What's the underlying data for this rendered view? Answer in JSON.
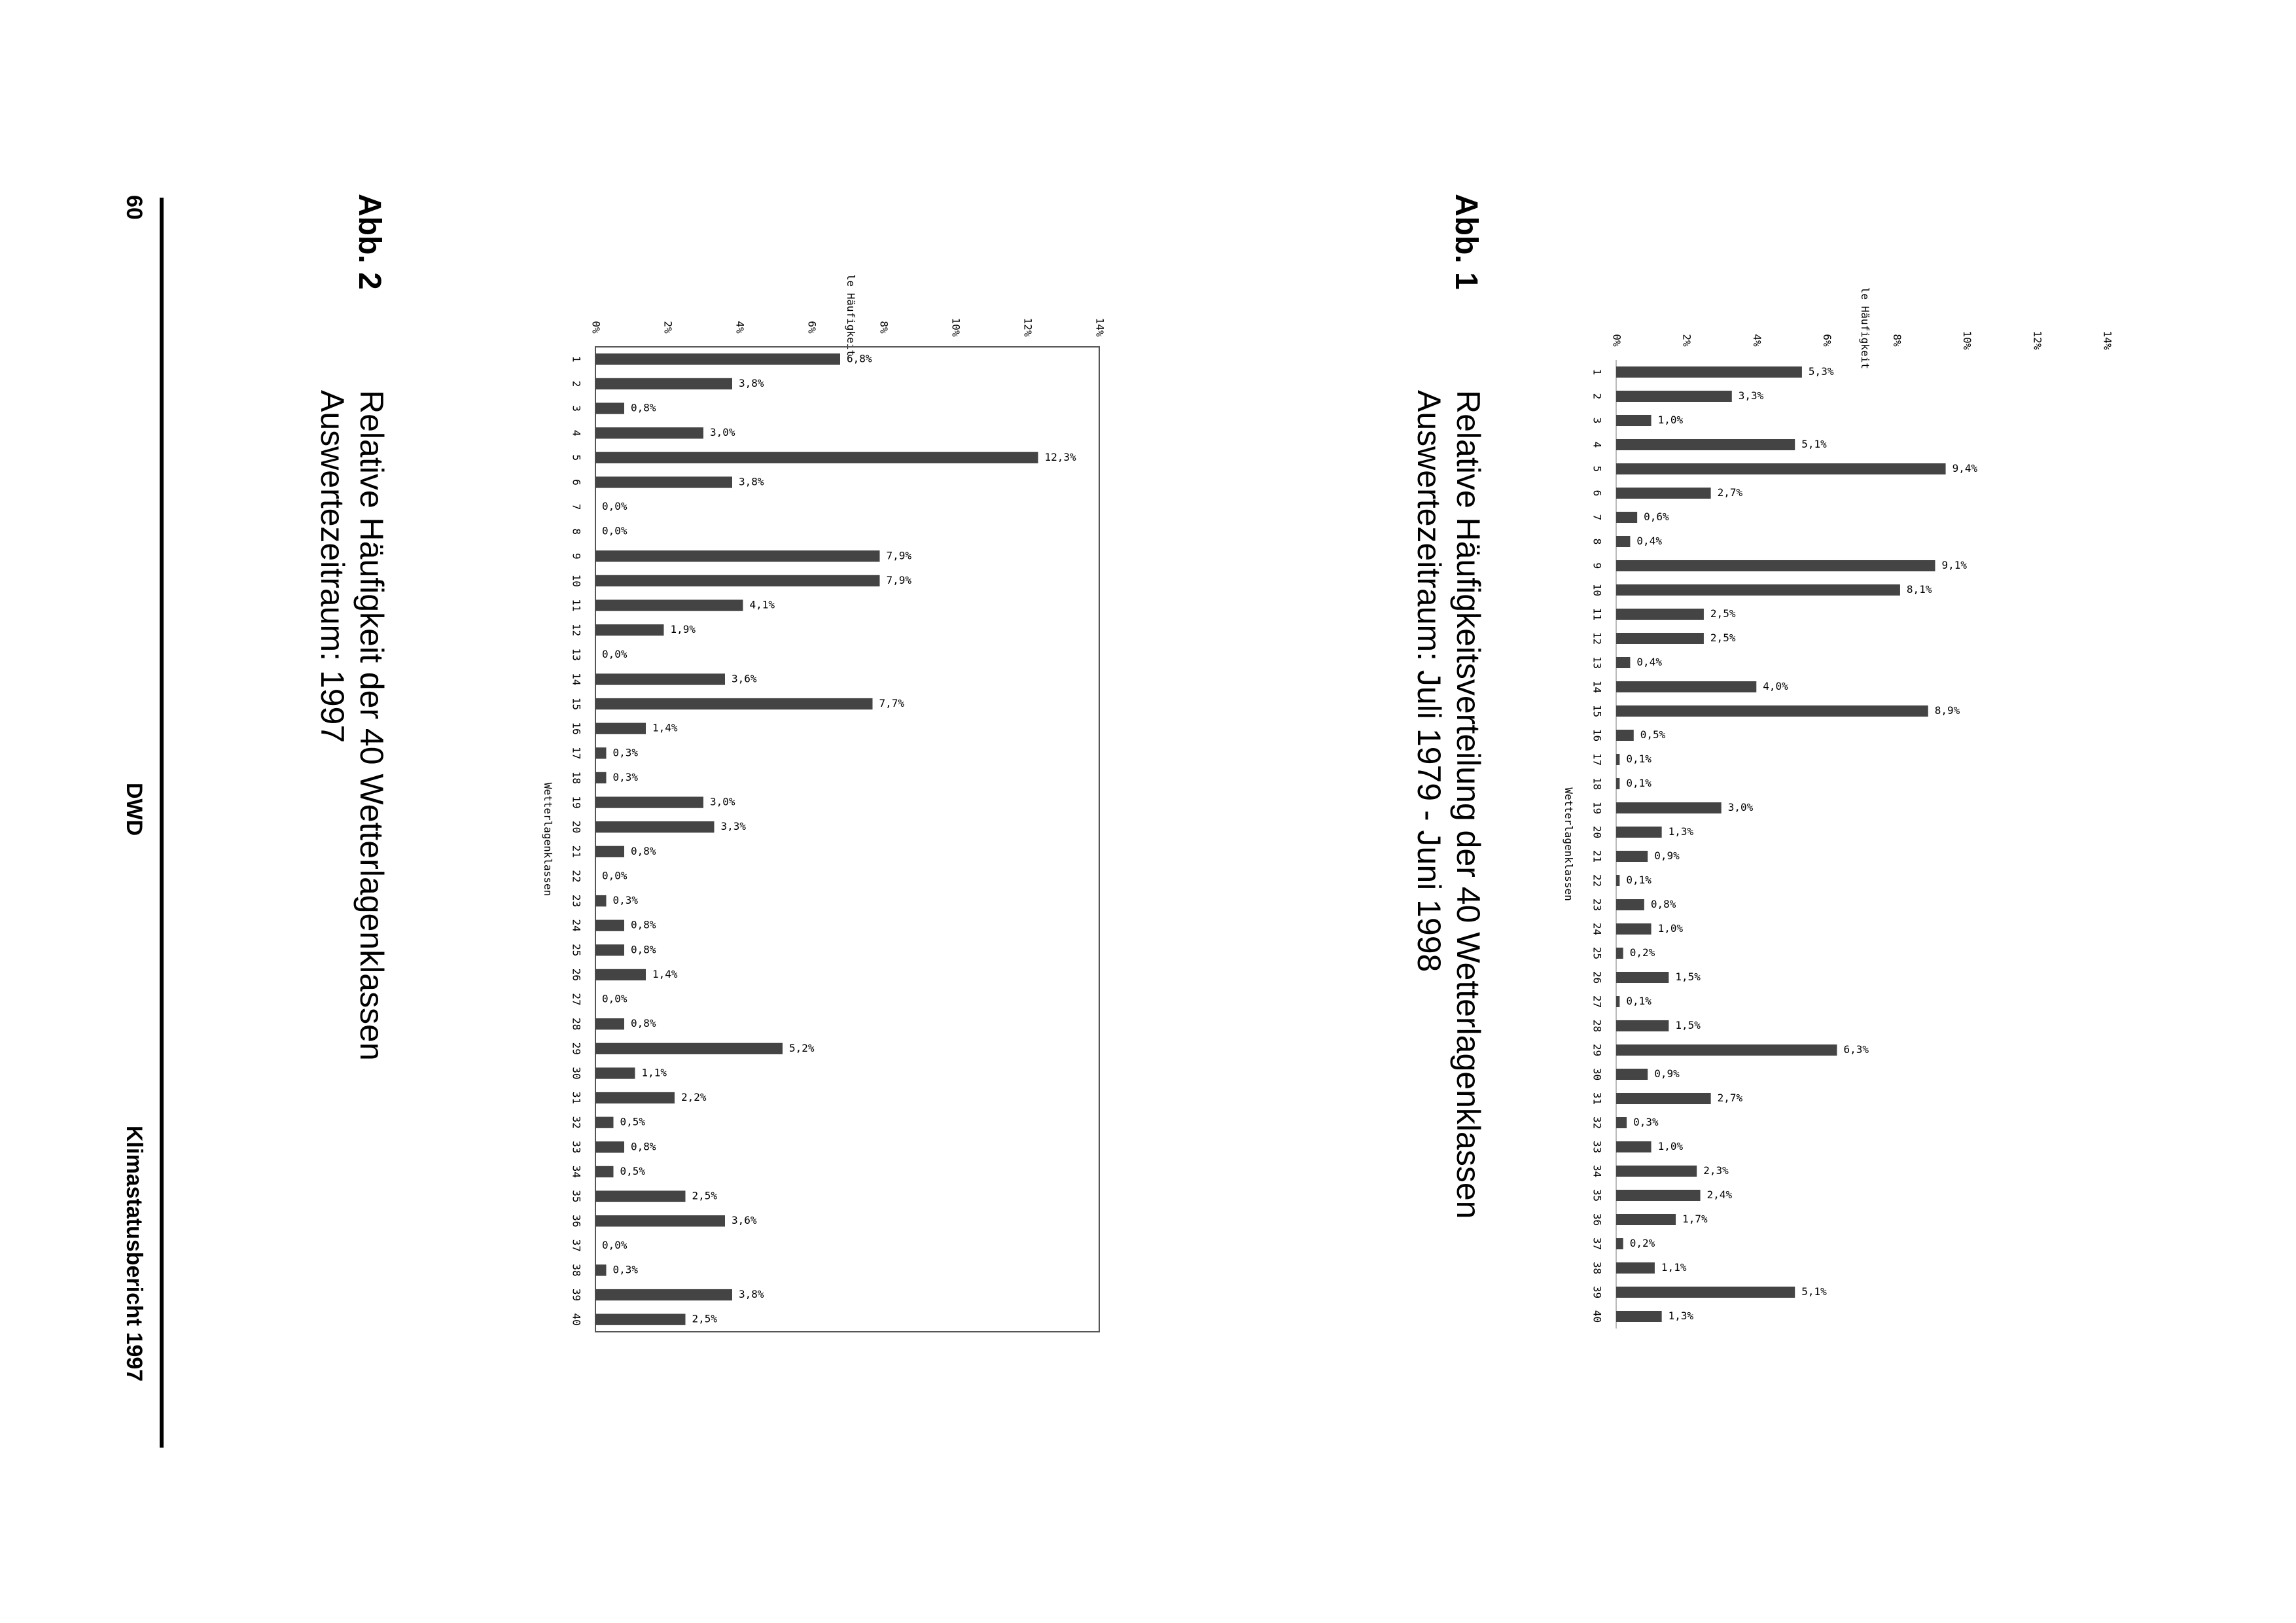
{
  "header": {
    "page_number": "60",
    "center": "DWD",
    "right": "Klimastatusbericht 1997"
  },
  "figures": [
    {
      "label": "Abb. 1",
      "caption_line1": "Relative Häufigkeitsverteilung der 40 Wetterlagenklassen",
      "caption_line2": "Auswertezeitraum: Juli 1979 - Juni 1998"
    },
    {
      "label": "Abb. 2",
      "caption_line1": "Relative Häufigkeit der 40 Wetterlagenklassen",
      "caption_line2": "Auswertezeitraum: 1997"
    }
  ],
  "chart_data": [
    {
      "type": "bar",
      "orientation": "horizontal",
      "title": "Abb. 1",
      "ylabel": "Prozentuale Häufigkeit",
      "xlabel": "Wetterlagenklassen",
      "categories": [
        "1",
        "2",
        "3",
        "4",
        "5",
        "6",
        "7",
        "8",
        "9",
        "10",
        "11",
        "12",
        "13",
        "14",
        "15",
        "16",
        "17",
        "18",
        "19",
        "20",
        "21",
        "22",
        "23",
        "24",
        "25",
        "26",
        "27",
        "28",
        "29",
        "30",
        "31",
        "32",
        "33",
        "34",
        "35",
        "36",
        "37",
        "38",
        "39",
        "40"
      ],
      "values": [
        5.3,
        3.3,
        1.0,
        5.1,
        9.4,
        2.7,
        0.6,
        0.4,
        9.1,
        8.1,
        2.5,
        2.5,
        0.4,
        4.0,
        8.9,
        0.5,
        0.1,
        0.1,
        3.0,
        1.3,
        0.9,
        0.1,
        0.8,
        1.0,
        0.2,
        1.5,
        0.1,
        1.5,
        6.3,
        0.9,
        2.7,
        0.3,
        1.0,
        2.3,
        2.4,
        1.7,
        0.2,
        1.1,
        5.1,
        1.3
      ],
      "data_labels": [
        "5,3%",
        "3,3%",
        "1,0%",
        "5,1%",
        "9,4%",
        "2,7%",
        "0,6%",
        "0,4%",
        "9,1%",
        "8,1%",
        "2,5%",
        "2,5%",
        "0,4%",
        "4,0%",
        "8,9%",
        "0,5%",
        "0,1%",
        "0,1%",
        "3,0%",
        "1,3%",
        "0,9%",
        "0,1%",
        "0,8%",
        "1,0%",
        "0,2%",
        "1,5%",
        "0,1%",
        "1,5%",
        "6,3%",
        "0,9%",
        "2,7%",
        "0,3%",
        "1,0%",
        "2,3%",
        "2,4%",
        "1,7%",
        "0,2%",
        "1,1%",
        "5,1%",
        "1,3%"
      ],
      "ticks": [
        "0%",
        "2%",
        "4%",
        "6%",
        "8%",
        "10%",
        "12%",
        "14%"
      ],
      "ylim": [
        0,
        14
      ],
      "frame": false,
      "bar_color": "#444444"
    },
    {
      "type": "bar",
      "orientation": "horizontal",
      "title": "Abb. 2",
      "ylabel": "Prozentuale Häufigkeit",
      "xlabel": "Wetterlagenklassen",
      "categories": [
        "1",
        "2",
        "3",
        "4",
        "5",
        "6",
        "7",
        "8",
        "9",
        "10",
        "11",
        "12",
        "13",
        "14",
        "15",
        "16",
        "17",
        "18",
        "19",
        "20",
        "21",
        "22",
        "23",
        "24",
        "25",
        "26",
        "27",
        "28",
        "29",
        "30",
        "31",
        "32",
        "33",
        "34",
        "35",
        "36",
        "37",
        "38",
        "39",
        "40"
      ],
      "values": [
        6.8,
        3.8,
        0.8,
        3.0,
        12.3,
        3.8,
        0.0,
        0.0,
        7.9,
        7.9,
        4.1,
        1.9,
        0.0,
        3.6,
        7.7,
        1.4,
        0.3,
        0.3,
        3.0,
        3.3,
        0.8,
        0.0,
        0.3,
        0.8,
        0.8,
        1.4,
        0.0,
        0.8,
        5.2,
        1.1,
        2.2,
        0.5,
        0.8,
        0.5,
        2.5,
        3.6,
        0.0,
        0.3,
        3.8,
        2.5
      ],
      "data_labels": [
        "6,8%",
        "3,8%",
        "0,8%",
        "3,0%",
        "12,3%",
        "3,8%",
        "0,0%",
        "0,0%",
        "7,9%",
        "7,9%",
        "4,1%",
        "1,9%",
        "0,0%",
        "3,6%",
        "7,7%",
        "1,4%",
        "0,3%",
        "0,3%",
        "3,0%",
        "3,3%",
        "0,8%",
        "0,0%",
        "0,3%",
        "0,8%",
        "0,8%",
        "1,4%",
        "0,0%",
        "0,8%",
        "5,2%",
        "1,1%",
        "2,2%",
        "0,5%",
        "0,8%",
        "0,5%",
        "2,5%",
        "3,6%",
        "0,0%",
        "0,3%",
        "3,8%",
        "2,5%"
      ],
      "ticks": [
        "0%",
        "2%",
        "4%",
        "6%",
        "8%",
        "10%",
        "12%",
        "14%"
      ],
      "ylim": [
        0,
        14
      ],
      "frame": true,
      "bar_color": "#444444"
    }
  ]
}
